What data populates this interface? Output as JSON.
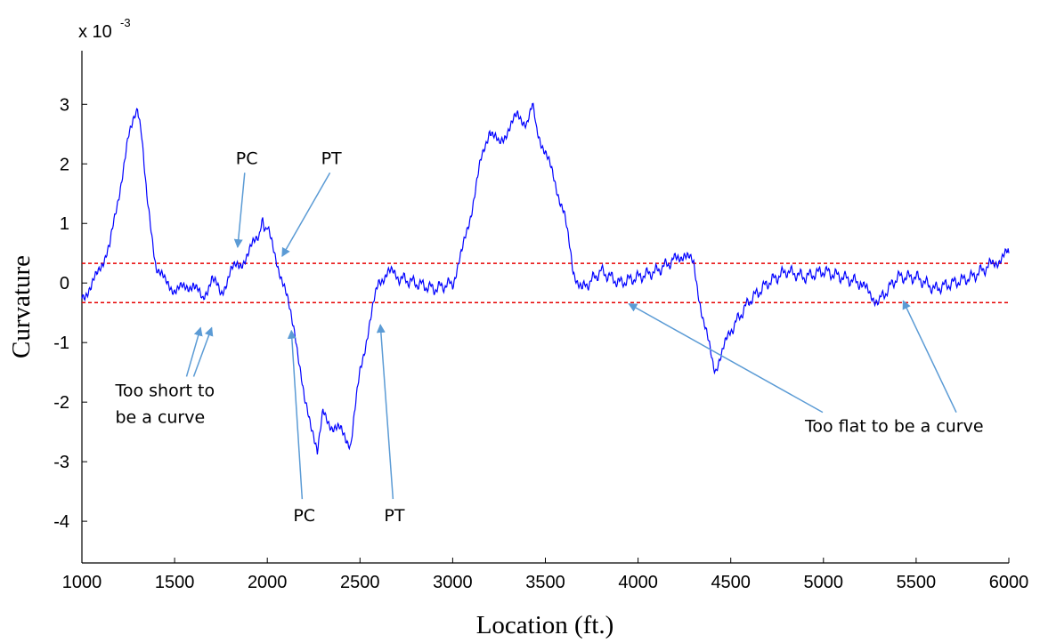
{
  "chart_data": {
    "type": "line",
    "xlabel": "Location (ft.)",
    "ylabel": "Curvature",
    "y_multiplier": "x 10",
    "y_multiplier_exponent": "-3",
    "xlim": [
      1000,
      6000
    ],
    "ylim": [
      -4.7,
      3.9
    ],
    "x_ticks": [
      1000,
      1500,
      2000,
      2500,
      3000,
      3500,
      4000,
      4500,
      5000,
      5500,
      6000
    ],
    "y_ticks": [
      -4,
      -3,
      -2,
      -1,
      0,
      1,
      2,
      3
    ],
    "grid": false,
    "series": [
      {
        "color": "#0000ff",
        "x": [
          1000,
          1050,
          1100,
          1150,
          1200,
          1250,
          1280,
          1300,
          1320,
          1350,
          1400,
          1450,
          1500,
          1550,
          1600,
          1650,
          1700,
          1750,
          1800,
          1850,
          1900,
          1950,
          1975,
          2000,
          2050,
          2100,
          2150,
          2200,
          2250,
          2270,
          2300,
          2350,
          2400,
          2450,
          2500,
          2550,
          2600,
          2650,
          2700,
          2800,
          2900,
          3000,
          3050,
          3100,
          3150,
          3200,
          3250,
          3300,
          3350,
          3400,
          3430,
          3450,
          3500,
          3550,
          3600,
          3650,
          3700,
          3800,
          3900,
          4000,
          4100,
          4200,
          4250,
          4300,
          4350,
          4400,
          4420,
          4450,
          4500,
          4600,
          4700,
          4800,
          4900,
          5000,
          5100,
          5200,
          5250,
          5300,
          5400,
          5500,
          5600,
          5700,
          5800,
          5900,
          5950,
          6000
        ],
        "values": [
          -0.2,
          -0.1,
          0.3,
          0.6,
          1.5,
          2.4,
          2.7,
          3.0,
          2.5,
          1.4,
          0.3,
          0.0,
          -0.1,
          -0.1,
          0.0,
          -0.3,
          0.1,
          -0.2,
          0.2,
          0.3,
          0.5,
          0.8,
          1.0,
          0.9,
          0.4,
          -0.2,
          -0.8,
          -2.0,
          -2.5,
          -2.9,
          -2.2,
          -2.4,
          -2.5,
          -2.7,
          -1.5,
          -0.7,
          0.0,
          0.2,
          0.1,
          0.0,
          -0.1,
          0.0,
          0.5,
          1.2,
          2.0,
          2.6,
          2.3,
          2.6,
          2.8,
          2.7,
          3.0,
          2.6,
          2.2,
          1.7,
          1.2,
          0.2,
          -0.1,
          0.2,
          0.0,
          0.1,
          0.2,
          0.4,
          0.5,
          0.3,
          -0.6,
          -1.3,
          -1.45,
          -1.2,
          -0.8,
          -0.3,
          0.0,
          0.2,
          0.1,
          0.2,
          0.1,
          0.0,
          -0.2,
          -0.3,
          0.1,
          0.1,
          -0.1,
          0.0,
          0.1,
          0.3,
          0.4,
          0.5
        ]
      }
    ],
    "thresholds": [
      0.33,
      -0.33
    ],
    "threshold_color": "#e60000",
    "annotations": [
      {
        "text": "PC",
        "x": 1830,
        "y": 2.0,
        "arrow_to": [
          1840,
          0.6
        ]
      },
      {
        "text": "PT",
        "x": 2290,
        "y": 2.0,
        "arrow_to": [
          2080,
          0.45
        ]
      },
      {
        "text": "PC",
        "x": 2140,
        "y": -4.0,
        "arrow_to": [
          2130,
          -0.8
        ]
      },
      {
        "text": "PT",
        "x": 2630,
        "y": -4.0,
        "arrow_to": [
          2610,
          -0.7
        ]
      },
      {
        "text": "Too short to",
        "text2": "be a curve",
        "x": 1180,
        "y": -1.9,
        "arrows_to": [
          [
            1640,
            -0.75
          ],
          [
            1700,
            -0.75
          ]
        ]
      },
      {
        "text": "Too flat to be a curve",
        "x": 4900,
        "y": -2.5,
        "arrows_to": [
          [
            3950,
            -0.35
          ],
          [
            5430,
            -0.3
          ]
        ]
      }
    ]
  }
}
